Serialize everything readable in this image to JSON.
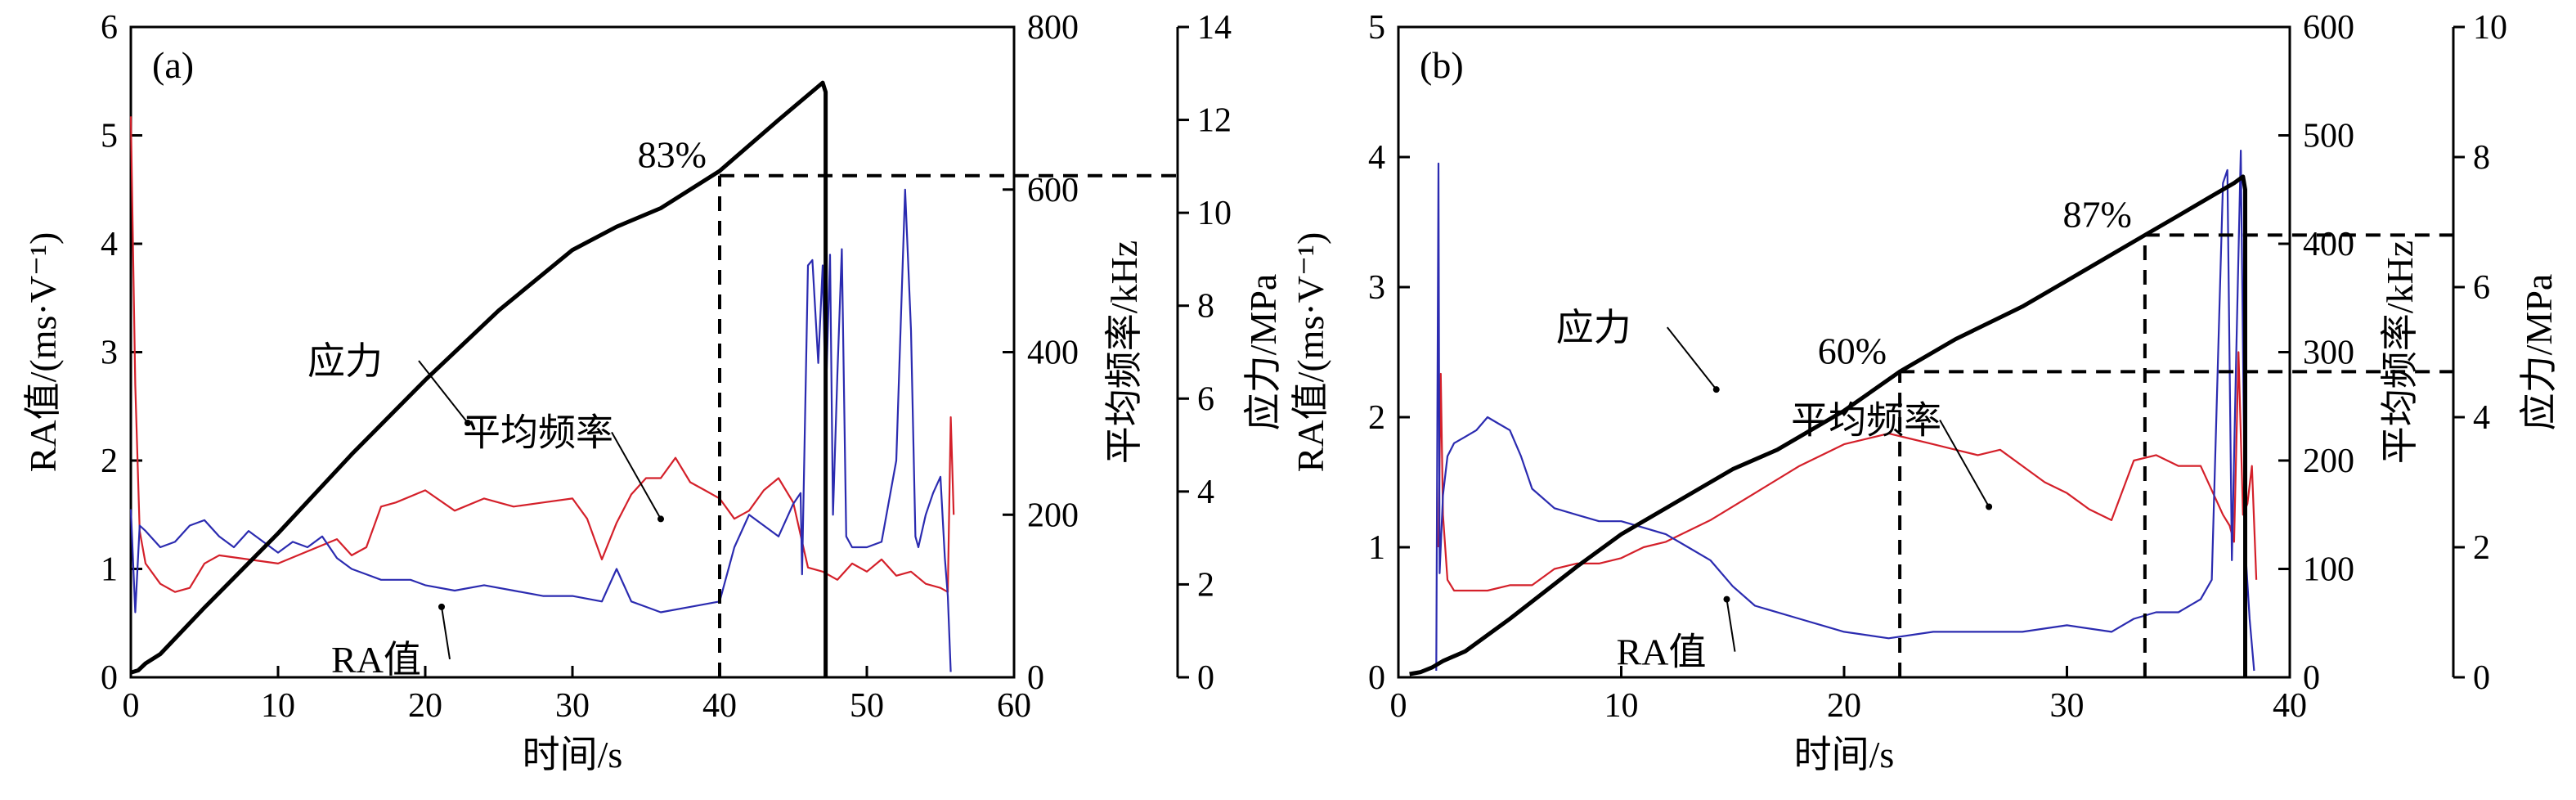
{
  "figure": {
    "colors": {
      "stress": "#000000",
      "avg_freq": "#d4202a",
      "ra": "#2b2bb0",
      "axis": "#000000"
    }
  },
  "chart_data": [
    {
      "type": "line",
      "panel_label": "(a)",
      "xlabel": "时间/s",
      "ylabel_left": "RA值/(ms·V⁻¹)",
      "ylabel_right1": "平均频率/kHz",
      "ylabel_right2": "应力/MPa",
      "xlim": [
        0,
        60
      ],
      "xticks": [
        0,
        10,
        20,
        30,
        40,
        50,
        60
      ],
      "ylim_left": [
        0,
        6
      ],
      "yticks_left": [
        0,
        1,
        2,
        3,
        4,
        5,
        6
      ],
      "ylim_right1": [
        0,
        800
      ],
      "yticks_right1": [
        0,
        200,
        400,
        600,
        800
      ],
      "ylim_right2": [
        0,
        14
      ],
      "yticks_right2": [
        0,
        2,
        4,
        6,
        8,
        10,
        12,
        14
      ],
      "grid": false,
      "annotations": [
        {
          "text": "应力",
          "series": "stress",
          "x": 24,
          "y_stress": 5.3
        },
        {
          "text": "平均频率",
          "series": "avg_freq",
          "x": 36,
          "y_freq": 225
        },
        {
          "text": "RA值",
          "series": "ra",
          "x": 20,
          "y_ra": 0.65
        }
      ],
      "threshold": {
        "label": "83%",
        "x": 40,
        "stress": 10.8
      },
      "series": [
        {
          "key": "stress",
          "axis": "right2",
          "x": [
            0,
            0.5,
            1,
            2,
            5,
            10,
            15,
            20,
            25,
            30,
            33,
            36,
            40,
            44,
            47,
            47.2,
            47.2
          ],
          "y": [
            0.1,
            0.15,
            0.3,
            0.5,
            1.5,
            3.1,
            4.8,
            6.4,
            7.9,
            9.2,
            9.7,
            10.1,
            10.9,
            12.0,
            12.8,
            12.6,
            0
          ]
        },
        {
          "key": "avg_freq",
          "axis": "right1",
          "x": [
            0,
            0.3,
            0.6,
            1,
            2,
            3,
            4,
            5,
            6,
            8,
            10,
            12,
            14,
            15,
            16,
            17,
            18,
            20,
            22,
            24,
            26,
            28,
            30,
            31,
            32,
            33,
            34,
            35,
            36,
            37,
            38,
            39,
            40,
            41,
            42,
            43,
            44,
            45,
            45.5,
            46,
            47,
            48,
            49,
            50,
            51,
            52,
            53,
            54,
            55,
            55.5,
            55.7,
            55.9
          ],
          "y": [
            690,
            360,
            180,
            140,
            115,
            105,
            110,
            140,
            150,
            145,
            140,
            155,
            170,
            150,
            160,
            210,
            215,
            230,
            205,
            220,
            210,
            215,
            220,
            195,
            145,
            190,
            225,
            245,
            245,
            270,
            240,
            230,
            220,
            195,
            205,
            230,
            245,
            215,
            175,
            135,
            130,
            120,
            140,
            130,
            145,
            125,
            130,
            115,
            110,
            105,
            320,
            200
          ]
        },
        {
          "key": "ra",
          "axis": "left",
          "x": [
            0,
            0.3,
            0.6,
            1,
            2,
            3,
            4,
            5,
            6,
            7,
            8,
            9,
            10,
            11,
            12,
            13,
            14,
            15,
            16,
            17,
            18,
            19,
            20,
            22,
            24,
            26,
            28,
            30,
            32,
            33,
            34,
            35,
            36,
            38,
            40,
            41,
            42,
            43,
            44,
            45,
            45.5,
            45.6,
            46,
            46.3,
            46.7,
            47,
            47.2,
            47.5,
            47.7,
            48,
            48.3,
            48.6,
            49,
            50,
            51,
            52,
            52.6,
            53,
            53.3,
            53.5,
            54,
            54.5,
            55,
            55.3,
            55.5,
            55.7
          ],
          "y": [
            1.55,
            0.6,
            1.4,
            1.35,
            1.2,
            1.25,
            1.4,
            1.45,
            1.3,
            1.2,
            1.35,
            1.25,
            1.15,
            1.25,
            1.2,
            1.3,
            1.1,
            1.0,
            0.95,
            0.9,
            0.9,
            0.9,
            0.85,
            0.8,
            0.85,
            0.8,
            0.75,
            0.75,
            0.7,
            1.0,
            0.7,
            0.65,
            0.6,
            0.65,
            0.7,
            1.2,
            1.5,
            1.4,
            1.3,
            1.6,
            1.7,
            0.95,
            3.8,
            3.85,
            2.9,
            3.8,
            2.5,
            3.9,
            1.5,
            2.8,
            3.95,
            1.3,
            1.2,
            1.2,
            1.25,
            2.0,
            4.5,
            3.2,
            1.3,
            1.2,
            1.5,
            1.7,
            1.85,
            1.1,
            0.75,
            0.05
          ]
        }
      ]
    },
    {
      "type": "line",
      "panel_label": "(b)",
      "xlabel": "时间/s",
      "ylabel_left": "RA值/(ms·V⁻¹)",
      "ylabel_right1": "平均频率/kHz",
      "ylabel_right2": "应力/MPa",
      "xlim": [
        0,
        40
      ],
      "xticks": [
        0,
        10,
        20,
        30,
        40
      ],
      "ylim_left": [
        0,
        5
      ],
      "yticks_left": [
        0,
        1,
        2,
        3,
        4,
        5
      ],
      "ylim_right1": [
        0,
        600
      ],
      "yticks_right1": [
        0,
        100,
        200,
        300,
        400,
        500,
        600
      ],
      "ylim_right2": [
        0,
        10
      ],
      "yticks_right2": [
        0,
        2,
        4,
        6,
        8,
        10
      ],
      "grid": false,
      "annotations": [
        {
          "text": "应力",
          "series": "stress",
          "x": 15,
          "y_stress": 4.3
        },
        {
          "text": "平均频率",
          "series": "avg_freq",
          "x": 26.5,
          "y_freq": 180
        },
        {
          "text": "RA值",
          "series": "ra",
          "x": 14,
          "y_ra": 0.6
        }
      ],
      "thresholds": [
        {
          "label": "60%",
          "x": 22.5,
          "stress": 4.7
        },
        {
          "label": "87%",
          "x": 33.5,
          "stress": 6.8
        }
      ],
      "series": [
        {
          "key": "stress",
          "axis": "right2",
          "x": [
            0.5,
            1.0,
            1.5,
            2.0,
            3,
            5,
            8,
            10,
            13,
            15,
            17,
            20,
            22.5,
            25,
            28,
            30,
            33.5,
            35,
            36.5,
            37.5,
            37.9,
            38.0,
            38.0
          ],
          "y": [
            0.05,
            0.08,
            0.15,
            0.25,
            0.4,
            0.9,
            1.7,
            2.2,
            2.8,
            3.2,
            3.5,
            4.1,
            4.7,
            5.2,
            5.7,
            6.1,
            6.8,
            7.1,
            7.4,
            7.6,
            7.7,
            7.5,
            0
          ]
        },
        {
          "key": "avg_freq",
          "axis": "right1",
          "x": [
            1.8,
            1.9,
            2.0,
            2.2,
            2.5,
            3,
            4,
            5,
            6,
            7,
            8,
            9,
            10,
            11,
            12,
            14,
            16,
            18,
            20,
            22,
            23,
            24,
            25,
            26,
            27,
            28,
            29,
            30,
            31,
            32,
            33,
            34,
            35,
            36,
            37,
            37.3,
            37.5,
            37.7,
            37.9,
            38.1,
            38.3,
            38.5
          ],
          "y": [
            120,
            280,
            150,
            90,
            80,
            80,
            80,
            85,
            85,
            100,
            105,
            105,
            110,
            120,
            125,
            145,
            170,
            195,
            215,
            225,
            220,
            215,
            210,
            205,
            210,
            195,
            180,
            170,
            155,
            145,
            200,
            205,
            195,
            195,
            150,
            140,
            125,
            300,
            150,
            160,
            195,
            90
          ]
        },
        {
          "key": "ra",
          "axis": "left",
          "x": [
            1.7,
            1.8,
            1.85,
            2.0,
            2.2,
            2.5,
            3,
            3.5,
            4,
            4.5,
            5,
            5.5,
            6,
            7,
            8,
            9,
            10,
            11,
            12,
            13,
            14,
            15,
            16,
            18,
            20,
            22,
            24,
            26,
            28,
            30,
            32,
            33,
            34,
            35,
            36,
            36.5,
            37,
            37.2,
            37.4,
            37.6,
            37.8,
            38.0,
            38.2,
            38.4
          ],
          "y": [
            0.05,
            3.95,
            0.8,
            1.4,
            1.7,
            1.8,
            1.85,
            1.9,
            2.0,
            1.95,
            1.9,
            1.7,
            1.45,
            1.3,
            1.25,
            1.2,
            1.2,
            1.15,
            1.1,
            1.0,
            0.9,
            0.7,
            0.55,
            0.45,
            0.35,
            0.3,
            0.35,
            0.35,
            0.35,
            0.4,
            0.35,
            0.45,
            0.5,
            0.5,
            0.6,
            0.75,
            3.8,
            3.9,
            0.9,
            2.5,
            4.05,
            1.0,
            0.45,
            0.05
          ]
        }
      ]
    }
  ]
}
